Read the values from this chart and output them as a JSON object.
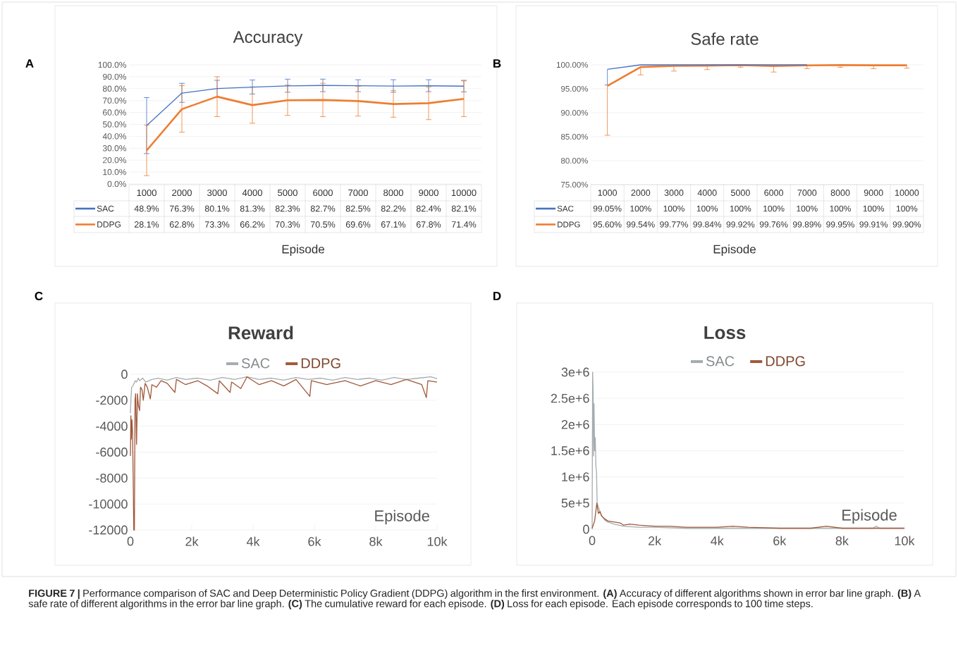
{
  "chart_data": [
    {
      "type": "line",
      "title": "Accuracy",
      "xlabel": "Episode",
      "categories": [
        "1000",
        "2000",
        "3000",
        "4000",
        "5000",
        "6000",
        "7000",
        "8000",
        "9000",
        "10000"
      ],
      "series": [
        {
          "name": "SAC",
          "color": "#4472c4",
          "values": [
            48.9,
            76.3,
            80.1,
            81.3,
            82.3,
            82.7,
            82.5,
            82.2,
            82.4,
            82.1
          ],
          "value_labels": [
            "48.9%",
            "76.3%",
            "80.1%",
            "81.3%",
            "82.3%",
            "82.7%",
            "82.5%",
            "82.2%",
            "82.4%",
            "82.1%"
          ],
          "errors": [
            [
              25.5,
              72.5
            ],
            [
              68.5,
              84.5
            ],
            [
              73,
              87
            ],
            [
              75.5,
              87.3
            ],
            [
              77,
              88
            ],
            [
              77.5,
              88
            ],
            [
              77.5,
              87.5
            ],
            [
              77,
              87.5
            ],
            [
              77.5,
              87.5
            ],
            [
              77.3,
              87
            ]
          ]
        },
        {
          "name": "DDPG",
          "color": "#ed7d31",
          "values": [
            28.1,
            62.8,
            73.3,
            66.2,
            70.3,
            70.5,
            69.6,
            67.1,
            67.8,
            71.4
          ],
          "value_labels": [
            "28.1%",
            "62.8%",
            "73.3%",
            "66.2%",
            "70.3%",
            "70.5%",
            "69.6%",
            "67.1%",
            "67.8%",
            "71.4%"
          ],
          "errors": [
            [
              7,
              49.5
            ],
            [
              43.5,
              82.5
            ],
            [
              56.5,
              90
            ],
            [
              51,
              81.5
            ],
            [
              57.5,
              83
            ],
            [
              56.5,
              84.5
            ],
            [
              57,
              82
            ],
            [
              56,
              78.5
            ],
            [
              54,
              81.5
            ],
            [
              56.5,
              86.5
            ]
          ]
        }
      ],
      "ylim": [
        0,
        100
      ],
      "yticks": [
        {
          "value": 0,
          "label": "0.0%"
        },
        {
          "value": 10,
          "label": "10.0%"
        },
        {
          "value": 20,
          "label": "20.0%"
        },
        {
          "value": 30,
          "label": "30.0%"
        },
        {
          "value": 40,
          "label": "40.0%"
        },
        {
          "value": 50,
          "label": "50.0%"
        },
        {
          "value": 60,
          "label": "60.0%"
        },
        {
          "value": 70,
          "label": "70.0%"
        },
        {
          "value": 80,
          "label": "80.0%"
        },
        {
          "value": 90,
          "label": "90.0%"
        },
        {
          "value": 100,
          "label": "100.0%"
        }
      ],
      "grid": "y",
      "legend": "bottom",
      "annotations": [
        "A"
      ]
    },
    {
      "type": "line",
      "title": "Safe rate",
      "xlabel": "Episode",
      "categories": [
        "1000",
        "2000",
        "3000",
        "4000",
        "5000",
        "6000",
        "7000",
        "8000",
        "9000",
        "10000"
      ],
      "series": [
        {
          "name": "SAC",
          "color": "#4472c4",
          "values": [
            99.05,
            100,
            100,
            100,
            100,
            100,
            100,
            null,
            null,
            null
          ],
          "value_labels": [
            "99.05%",
            "100%",
            "100%",
            "100%",
            "100%",
            "100%",
            "100%",
            "100%",
            "100%",
            "100%"
          ],
          "errors": [
            [
              95.8,
              99.05
            ],
            null,
            null,
            null,
            null,
            null,
            null,
            null,
            null,
            null
          ]
        },
        {
          "name": "DDPG",
          "color": "#ed7d31",
          "values": [
            95.6,
            99.54,
            99.77,
            99.84,
            99.92,
            99.76,
            99.89,
            99.95,
            99.91,
            99.9
          ],
          "value_labels": [
            "95.60%",
            "99.54%",
            "99.77%",
            "99.84%",
            "99.92%",
            "99.76%",
            "99.89%",
            "99.95%",
            "99.91%",
            "99.90%"
          ],
          "errors": [
            [
              85.3,
              95.6
            ],
            [
              97.9,
              99.54
            ],
            [
              98.7,
              99.77
            ],
            [
              99,
              99.84
            ],
            [
              99.5,
              99.92
            ],
            [
              98.5,
              99.76
            ],
            [
              99.2,
              99.89
            ],
            [
              99.5,
              99.95
            ],
            [
              99.2,
              99.91
            ],
            [
              99.3,
              99.9
            ]
          ]
        }
      ],
      "ylim": [
        75,
        100
      ],
      "yticks": [
        {
          "value": 75,
          "label": "75.00%"
        },
        {
          "value": 80,
          "label": "80.00%"
        },
        {
          "value": 85,
          "label": "85.00%"
        },
        {
          "value": 90,
          "label": "90.00%"
        },
        {
          "value": 95,
          "label": "95.00%"
        },
        {
          "value": 100,
          "label": "100.00%"
        }
      ],
      "grid": "y",
      "legend": "bottom",
      "annotations": [
        "B"
      ]
    },
    {
      "type": "line",
      "title": "Reward",
      "xlabel": "Episode",
      "series": [
        {
          "name": "SAC",
          "color": "#a5acaf",
          "x": [
            0,
            20,
            40,
            80,
            120,
            160,
            200,
            260,
            300,
            400,
            500,
            700,
            900,
            1200,
            1500,
            1800,
            2200,
            2600,
            3000,
            3400,
            3800,
            4200,
            4600,
            5000,
            5400,
            5800,
            6200,
            6600,
            7000,
            7400,
            7800,
            8200,
            8600,
            9000,
            9400,
            9800,
            10000
          ],
          "values": [
            -3000,
            -1800,
            -1000,
            -900,
            -700,
            -500,
            -600,
            -300,
            -500,
            -300,
            -600,
            -400,
            -300,
            -450,
            -250,
            -400,
            -300,
            -450,
            -250,
            -400,
            -200,
            -400,
            -300,
            -450,
            -250,
            -400,
            -300,
            -450,
            -250,
            -400,
            -300,
            -450,
            -250,
            -400,
            -300,
            -200,
            -350
          ]
        },
        {
          "name": "DDPG",
          "color": "#a0583a",
          "x": [
            0,
            15,
            30,
            50,
            70,
            90,
            110,
            130,
            150,
            170,
            200,
            230,
            260,
            300,
            330,
            380,
            420,
            480,
            550,
            650,
            700,
            850,
            1000,
            1200,
            1450,
            1500,
            1800,
            2200,
            2500,
            2850,
            2900,
            3250,
            3300,
            3600,
            3800,
            4200,
            4600,
            5000,
            5400,
            5850,
            5900,
            6400,
            7000,
            7500,
            8000,
            8500,
            9000,
            9500,
            9650,
            9700,
            10000
          ],
          "values": [
            -6300,
            -3200,
            -5000,
            -3500,
            -4500,
            -8000,
            -12000,
            -12000,
            -2000,
            -1500,
            -5400,
            -1500,
            -2400,
            -2800,
            -1000,
            -1200,
            -2000,
            -700,
            -1000,
            -1900,
            -800,
            -1000,
            -500,
            -700,
            -1400,
            -400,
            -800,
            -500,
            -900,
            -1500,
            -500,
            -1400,
            -600,
            -1100,
            -200,
            -800,
            -500,
            -900,
            -400,
            -1700,
            -500,
            -800,
            -500,
            -900,
            -500,
            -800,
            -400,
            -800,
            -1800,
            -500,
            -600
          ]
        }
      ],
      "xlim": [
        0,
        10000
      ],
      "xticks": [
        0,
        {
          "value": 2000,
          "label": "2k"
        },
        {
          "value": 4000,
          "label": "4k"
        },
        {
          "value": 6000,
          "label": "6k"
        },
        {
          "value": 8000,
          "label": "8k"
        },
        {
          "value": 10000,
          "label": "10k"
        }
      ],
      "ylim": [
        -12000,
        0
      ],
      "yticks": [
        -12000,
        -10000,
        -8000,
        -6000,
        -4000,
        -2000,
        0
      ],
      "grid": "y",
      "legend": "top",
      "annotations": [
        "C"
      ]
    },
    {
      "type": "line",
      "title": "Loss",
      "xlabel": "Episode",
      "series": [
        {
          "name": "SAC",
          "color": "#a5acaf",
          "x": [
            0,
            15,
            30,
            45,
            60,
            80,
            100,
            120,
            140,
            160,
            200,
            250,
            300,
            400,
            500,
            700,
            1000,
            1500,
            2000,
            3000,
            4000,
            5000,
            6000,
            7000,
            8000,
            9000,
            9100,
            9200,
            10000
          ],
          "values": [
            0,
            3000000,
            2700000,
            1400000,
            2400000,
            1500000,
            1750000,
            1200000,
            1100000,
            500000,
            420000,
            340000,
            260000,
            180000,
            140000,
            100000,
            60000,
            40000,
            40000,
            20000,
            20000,
            20000,
            20000,
            20000,
            20000,
            20000,
            60000,
            20000,
            20000
          ]
        },
        {
          "name": "DDPG",
          "color": "#a0583a",
          "x": [
            0,
            80,
            150,
            200,
            250,
            300,
            400,
            500,
            700,
            900,
            1000,
            1200,
            1500,
            2000,
            2500,
            3000,
            4000,
            4500,
            5000,
            6000,
            7000,
            7500,
            8000,
            9000,
            10000
          ],
          "values": [
            20000,
            160000,
            500000,
            300000,
            340000,
            260000,
            200000,
            160000,
            140000,
            120000,
            80000,
            100000,
            80000,
            60000,
            60000,
            40000,
            40000,
            60000,
            40000,
            20000,
            20000,
            60000,
            20000,
            20000,
            20000
          ]
        }
      ],
      "xlim": [
        0,
        10000
      ],
      "xticks": [
        0,
        {
          "value": 2000,
          "label": "2k"
        },
        {
          "value": 4000,
          "label": "4k"
        },
        {
          "value": 6000,
          "label": "6k"
        },
        {
          "value": 8000,
          "label": "8k"
        },
        {
          "value": 10000,
          "label": "10k"
        }
      ],
      "ylim": [
        0,
        3000000
      ],
      "yticks": [
        0,
        {
          "value": 500000,
          "label": "5e+5"
        },
        {
          "value": 1000000,
          "label": "1e+6"
        },
        {
          "value": 1500000,
          "label": "1.5e+6"
        },
        {
          "value": 2000000,
          "label": "2e+6"
        },
        {
          "value": 2500000,
          "label": "2.5e+6"
        },
        {
          "value": 3000000,
          "label": "3e+6"
        }
      ],
      "grid": "y",
      "legend": "top",
      "annotations": [
        "D",
        "**FIGURE 7 |** Performance comparison of SAC and Deep Deterministic Policy Gradient (DDPG) algorithm in the first environment. **(A)** Accuracy of different algorithms shown in error bar line graph. **(B)** A safe rate of different algorithms in the error bar line graph. **(C)** The cumulative reward for each episode. **(D)** Loss for each episode. Each episode corresponds to 100 time steps."
      ]
    }
  ]
}
